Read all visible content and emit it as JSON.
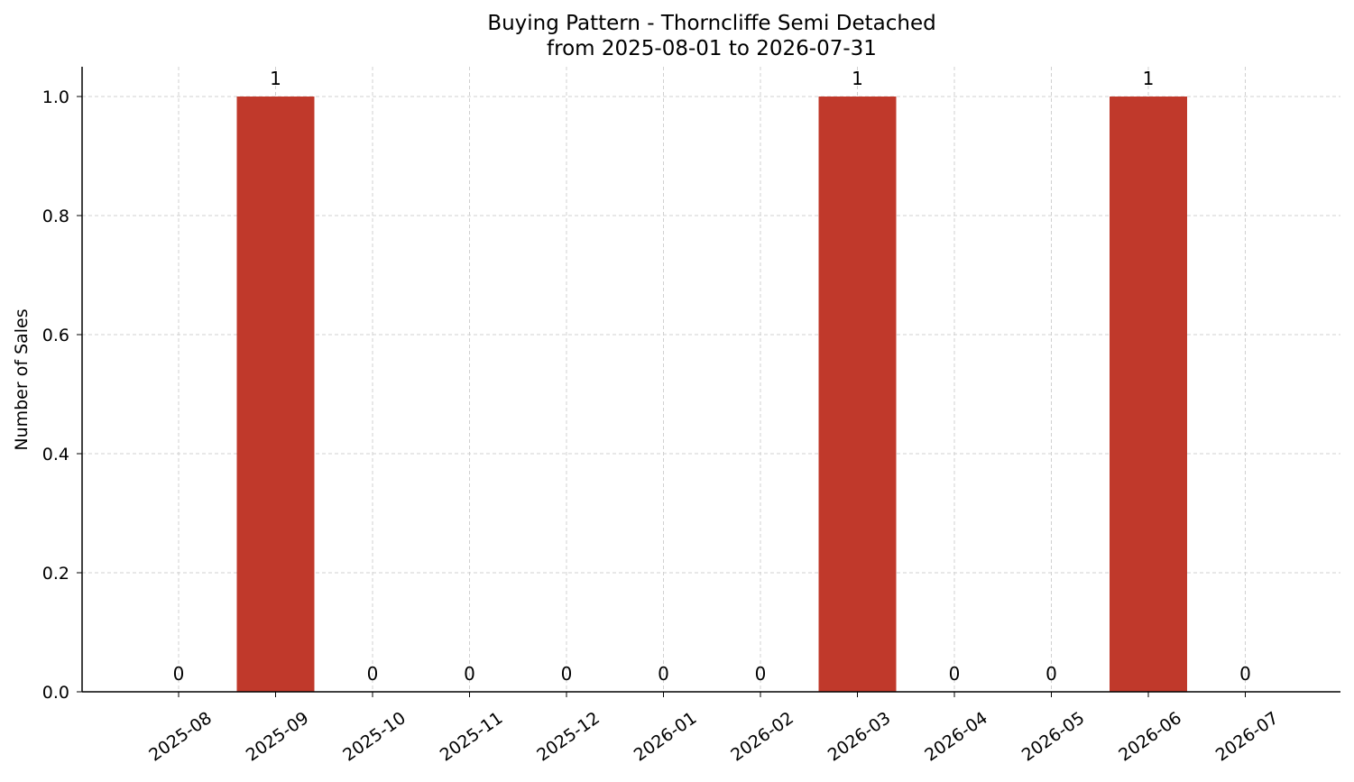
{
  "chart_data": {
    "type": "bar",
    "title": "Buying Pattern - Thorncliffe Semi Detached",
    "subtitle": "from 2025-08-01 to 2026-07-31",
    "xlabel": "",
    "ylabel": "Number of Sales",
    "categories": [
      "2025-08",
      "2025-09",
      "2025-10",
      "2025-11",
      "2025-12",
      "2026-01",
      "2026-02",
      "2026-03",
      "2026-04",
      "2026-05",
      "2026-06",
      "2026-07"
    ],
    "values": [
      0,
      1,
      0,
      0,
      0,
      0,
      0,
      1,
      0,
      0,
      1,
      0
    ],
    "data_labels": [
      "0",
      "1",
      "0",
      "0",
      "0",
      "0",
      "0",
      "1",
      "0",
      "0",
      "1",
      "0"
    ],
    "ylim": [
      0,
      1.05
    ],
    "yticks": [
      "0.0",
      "0.2",
      "0.4",
      "0.6",
      "0.8",
      "1.0"
    ],
    "grid": true,
    "bar_color": "#c0392b"
  }
}
